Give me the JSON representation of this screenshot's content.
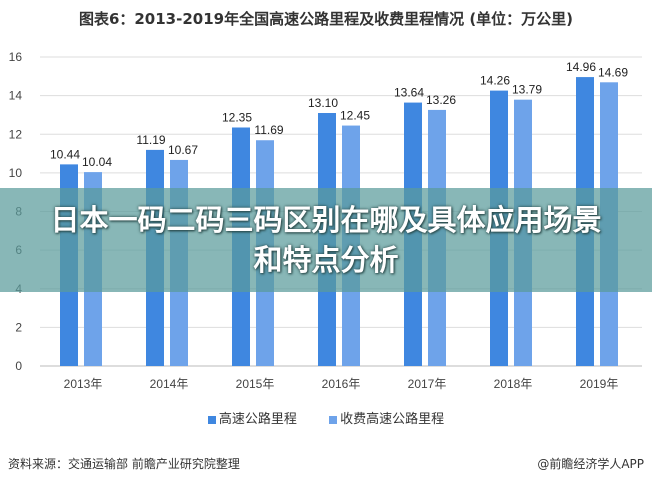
{
  "chart_data": {
    "type": "bar",
    "title": "图表6：2013-2019年全国高速公路里程及收费里程情况 (单位：万公里)",
    "categories": [
      "2013年",
      "2014年",
      "2015年",
      "2016年",
      "2017年",
      "2018年",
      "2019年"
    ],
    "series": [
      {
        "name": "高速公路里程",
        "color": "#3f87e0",
        "values": [
          10.44,
          11.19,
          12.35,
          13.1,
          13.64,
          14.26,
          14.96
        ],
        "labels": [
          "10.44",
          "11.19",
          "12.35",
          "13.10",
          "13.64",
          "14.26",
          "14.96"
        ]
      },
      {
        "name": "收费高速公路里程",
        "color": "#6ea3ea",
        "values": [
          10.04,
          10.67,
          11.69,
          12.45,
          13.26,
          13.79,
          14.69
        ],
        "labels": [
          "10.04",
          "10.67",
          "11.69",
          "12.45",
          "13.26",
          "13.79",
          "14.69"
        ]
      }
    ],
    "ylim": [
      0,
      16
    ],
    "yticks": [
      "0",
      "2",
      "4",
      "6",
      "8",
      "10",
      "12",
      "14",
      "16"
    ],
    "grid": true,
    "legend": "bottom"
  },
  "overlay": {
    "text": "日本一码二码三码区别在哪及具体应用场景和特点分析"
  },
  "footer": {
    "source": "资料来源：交通运输部 前瞻产业研究院整理",
    "brand": "@前瞻经济学人APP"
  }
}
